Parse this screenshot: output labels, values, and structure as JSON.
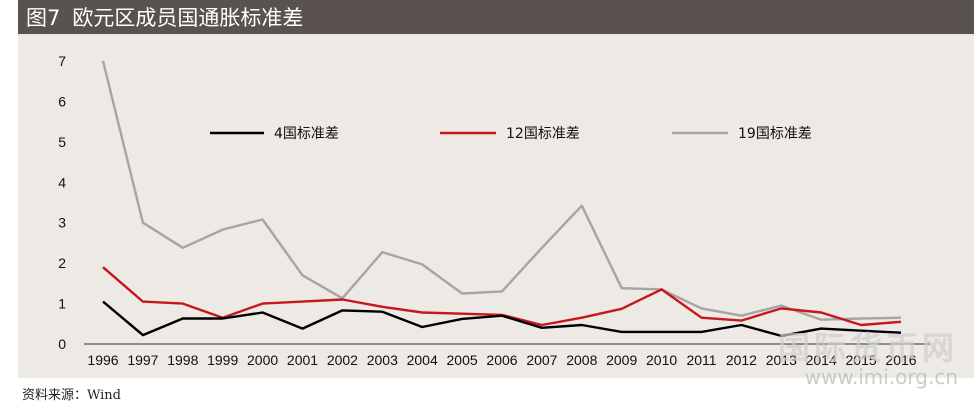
{
  "header": {
    "fig_number": "图7",
    "title": "欧元区成员国通胀标准差"
  },
  "source": "资料来源：Wind",
  "watermark": {
    "seal_text": "国际货币网",
    "url": "www.imi.org.cn"
  },
  "colors": {
    "header_bg": "#5a5250",
    "plot_bg": "#ede9e4",
    "series_4": "#000000",
    "series_12": "#c8161d",
    "series_19": "#a5a5a5"
  },
  "chart_data": {
    "type": "line",
    "title": "欧元区成员国通胀标准差",
    "xlabel": "",
    "ylabel": "",
    "x": [
      "1996",
      "1997",
      "1998",
      "1999",
      "2000",
      "2001",
      "2002",
      "2003",
      "2004",
      "2005",
      "2006",
      "2007",
      "2008",
      "2009",
      "2010",
      "2011",
      "2012",
      "2013",
      "2014",
      "2015",
      "2016"
    ],
    "ylim": [
      0,
      7
    ],
    "yticks": [
      "0",
      "1",
      "2",
      "3",
      "4",
      "5",
      "6",
      "7"
    ],
    "grid": false,
    "legend_position": "top",
    "series": [
      {
        "name": "4国标准差",
        "color": "#000000",
        "values": [
          1.05,
          0.22,
          0.63,
          0.63,
          0.78,
          0.38,
          0.83,
          0.8,
          0.42,
          0.62,
          0.7,
          0.4,
          0.47,
          0.3,
          0.3,
          0.3,
          0.47,
          0.2,
          0.38,
          0.33,
          0.28
        ]
      },
      {
        "name": "12国标准差",
        "color": "#c8161d",
        "values": [
          1.9,
          1.05,
          1.0,
          0.65,
          1.0,
          1.05,
          1.1,
          0.92,
          0.78,
          0.75,
          0.72,
          0.47,
          0.65,
          0.87,
          1.35,
          0.65,
          0.58,
          0.88,
          0.78,
          0.47,
          0.55
        ]
      },
      {
        "name": "19国标准差",
        "color": "#a5a5a5",
        "values": [
          7.0,
          3.0,
          2.38,
          2.83,
          3.08,
          1.7,
          1.13,
          2.27,
          1.97,
          1.25,
          1.3,
          2.38,
          3.42,
          1.38,
          1.35,
          0.88,
          0.7,
          0.95,
          0.6,
          0.63,
          0.65
        ]
      }
    ]
  }
}
